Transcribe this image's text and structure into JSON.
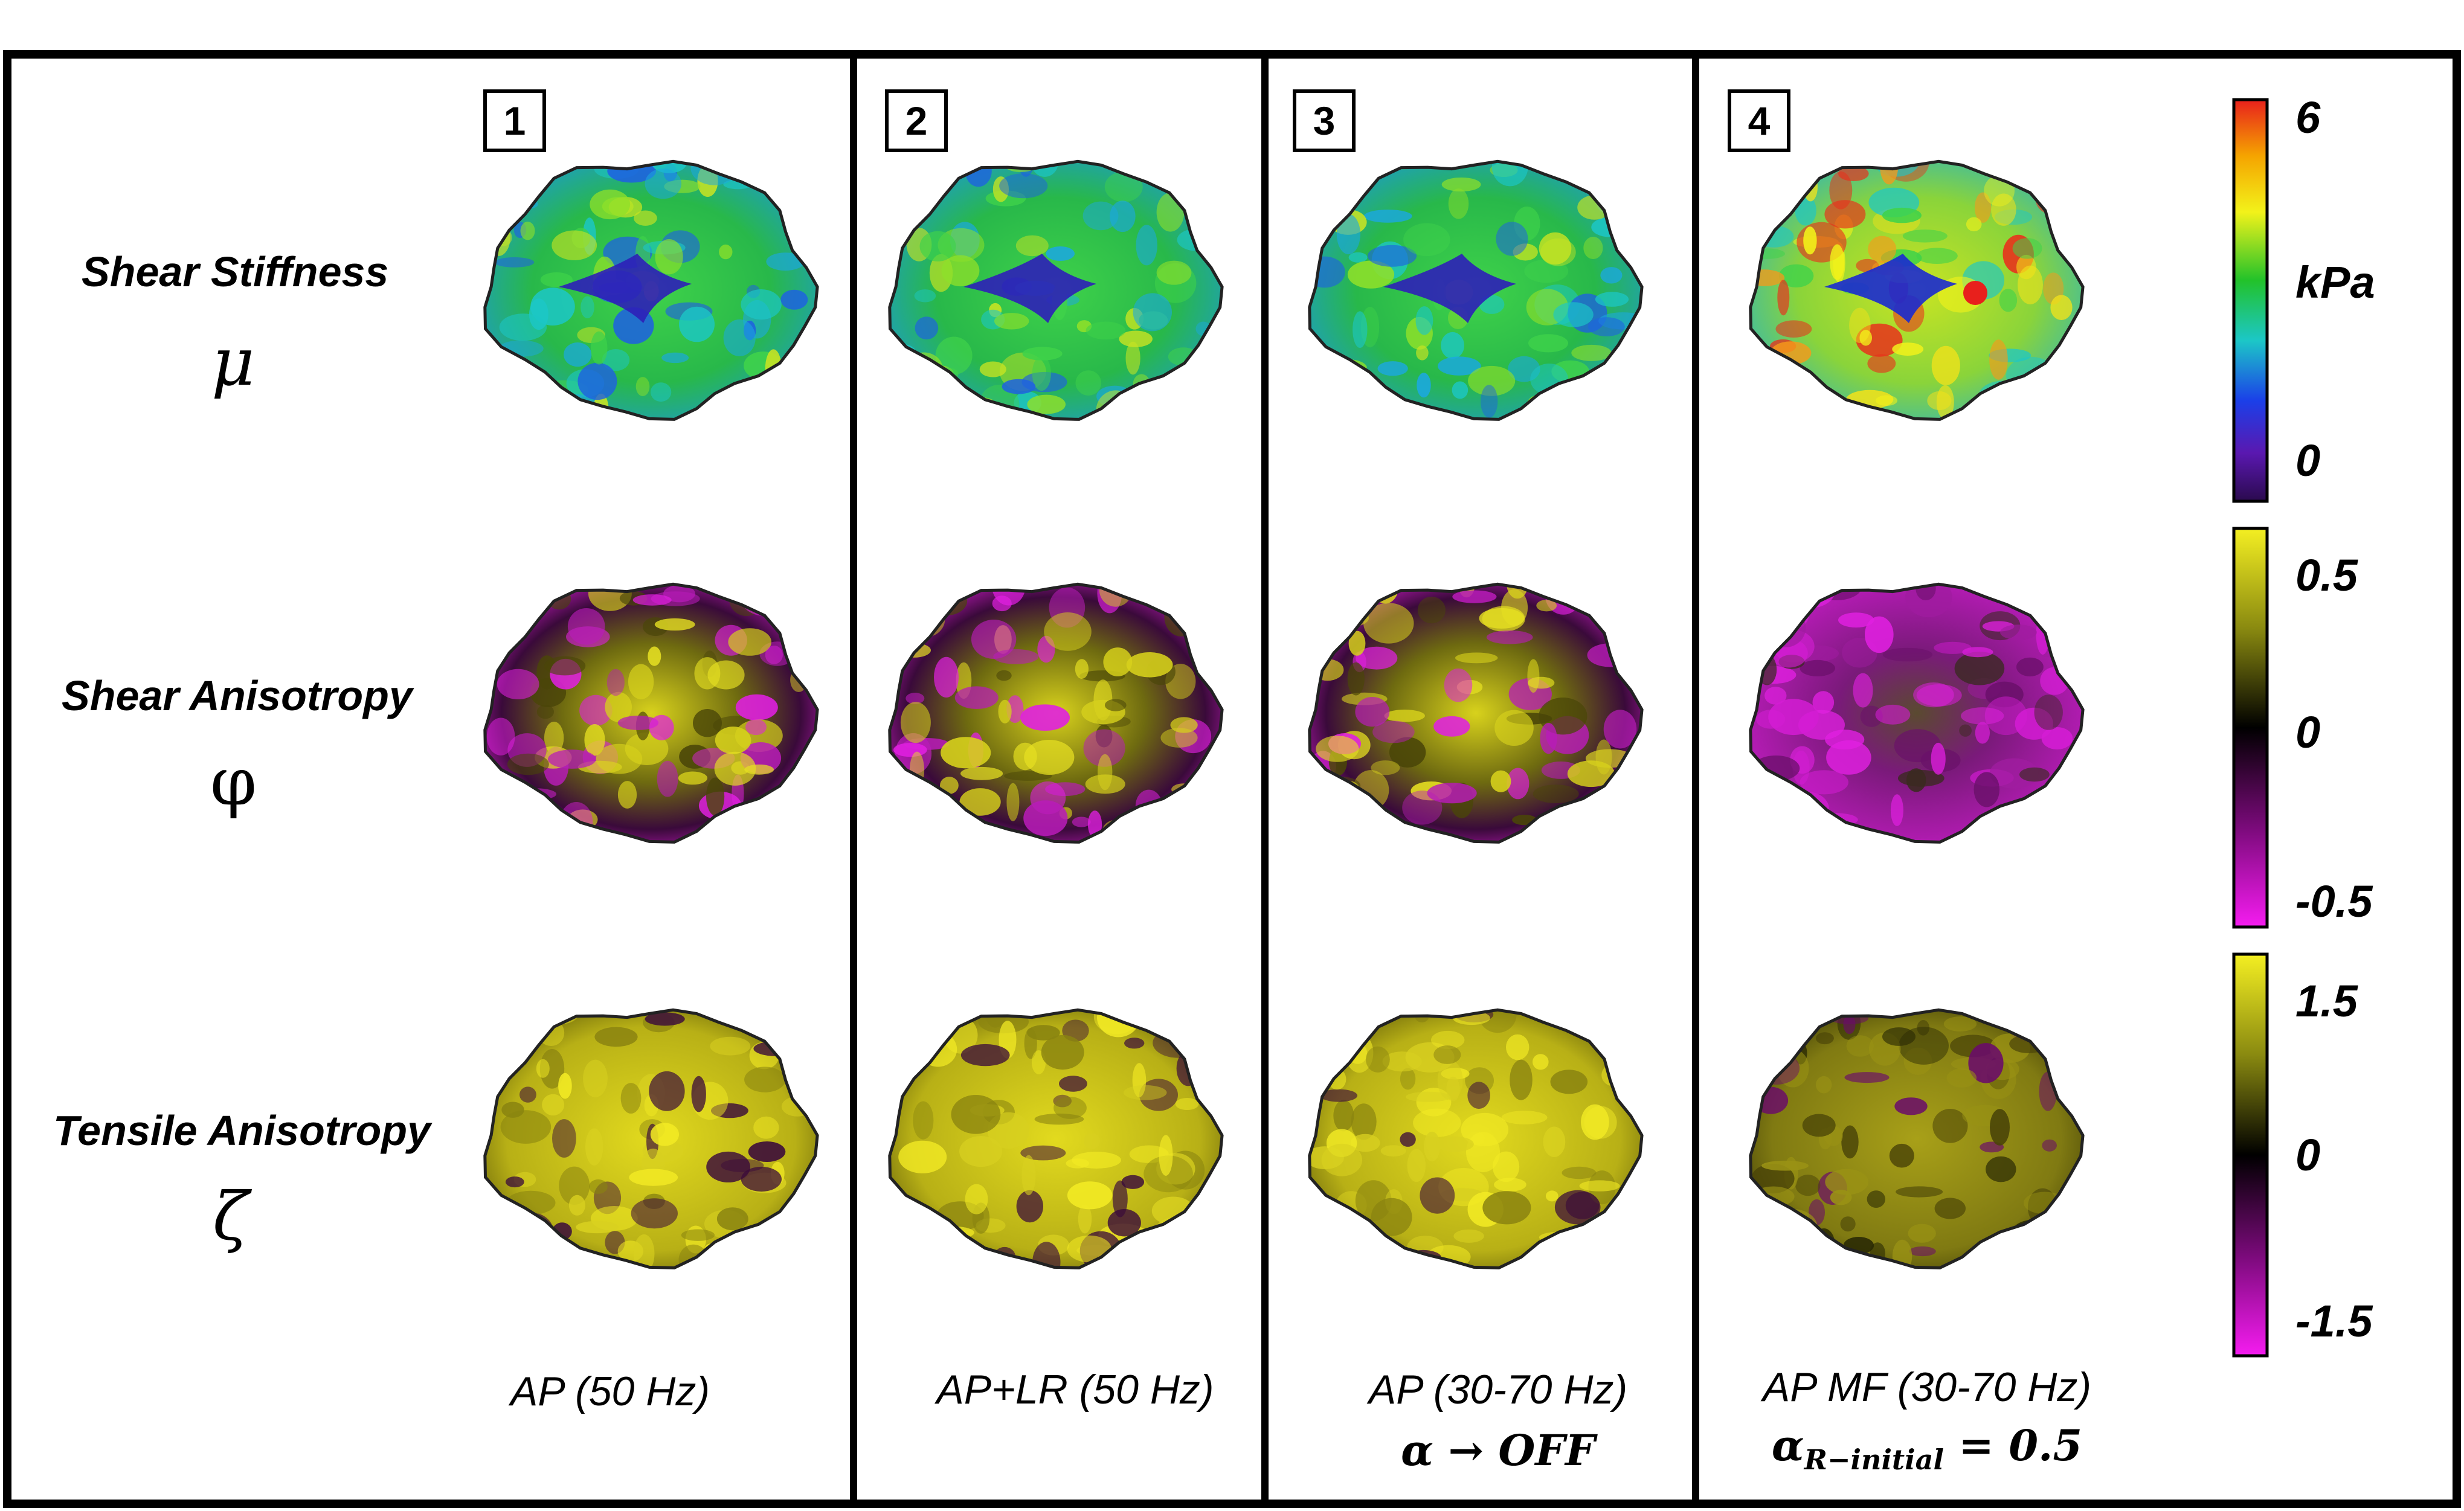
{
  "panels": [
    {
      "number": "1",
      "caption": "AP (50 Hz)",
      "math": ""
    },
    {
      "number": "2",
      "caption": "AP+LR (50 Hz)",
      "math": ""
    },
    {
      "number": "3",
      "caption": "AP (30-70 Hz)",
      "math": "α → OFF"
    },
    {
      "number": "4",
      "caption": "AP MF (30-70 Hz)",
      "math_main": "α",
      "math_sub": "R−initial",
      "math_tail": " = 0.5"
    }
  ],
  "rows": [
    {
      "name": "Shear Stiffness",
      "symbol": "μ"
    },
    {
      "name": "Shear Anisotropy",
      "symbol": "φ"
    },
    {
      "name": "Tensile Anisotropy",
      "symbol": "ζ"
    }
  ],
  "colorbars": [
    {
      "top": "6",
      "middle": "kPa",
      "bottom": "0",
      "colors": [
        "#e8201c",
        "#f5a400",
        "#f2f21a",
        "#22c22a",
        "#1cc7c7",
        "#1b3fe8",
        "#5a18b0",
        "#2a0a4e"
      ]
    },
    {
      "top": "0.5",
      "middle": "0",
      "bottom": "-0.5",
      "colors": [
        "#f4ef22",
        "#8a8a10",
        "#000000",
        "#7a0a7a",
        "#f51cf0"
      ]
    },
    {
      "top": "1.5",
      "middle": "0",
      "bottom": "-1.5",
      "colors": [
        "#f4ef22",
        "#8a8a10",
        "#000000",
        "#7a0a7a",
        "#f51cf0"
      ]
    }
  ]
}
